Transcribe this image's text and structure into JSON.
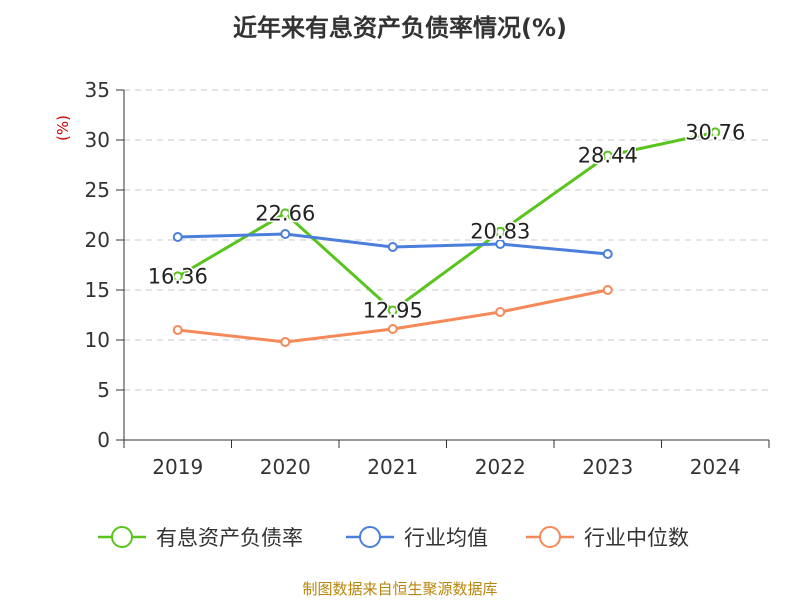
{
  "chart_data": {
    "type": "line",
    "title": "近年来有息资产负债率情况(%)",
    "ylabel": "(%)",
    "source": "制图数据来自恒生聚源数据库",
    "categories": [
      "2019",
      "2020",
      "2021",
      "2022",
      "2023",
      "2024"
    ],
    "ylim": [
      0,
      35
    ],
    "yticks": [
      "0",
      "5",
      "10",
      "15",
      "20",
      "25",
      "30",
      "35"
    ],
    "grid": true,
    "legend_position": "bottom",
    "series": [
      {
        "name": "有息资产负债率",
        "color": "#5ac41e",
        "values": [
          16.36,
          22.66,
          12.95,
          20.83,
          28.44,
          30.76
        ],
        "labels": [
          "16.36",
          "22.66",
          "12.95",
          "20.83",
          "28.44",
          "30.76"
        ]
      },
      {
        "name": "行业均值",
        "color": "#4a7fdb",
        "values": [
          20.3,
          20.6,
          19.3,
          19.6,
          18.6,
          null
        ]
      },
      {
        "name": "行业中位数",
        "color": "#f5895a",
        "values": [
          11.0,
          9.8,
          11.1,
          12.8,
          15.0,
          null
        ]
      }
    ]
  }
}
